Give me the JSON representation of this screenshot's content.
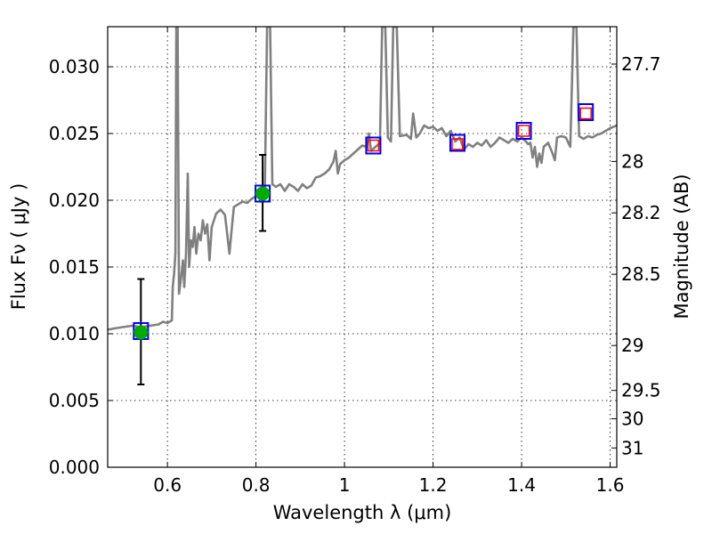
{
  "chart_data": {
    "type": "line",
    "xlabel": "Wavelength  λ (μm)",
    "ylabel": "Flux  Fν  ( μJy )",
    "y2label": "Magnitude (AB)",
    "xlim": [
      0.465,
      1.615
    ],
    "ylim": [
      0.0,
      0.033
    ],
    "x_ticks": [
      0.6,
      0.8,
      1.0,
      1.2,
      1.4,
      1.6
    ],
    "x_tick_labels": [
      "0.6",
      "0.8",
      "1",
      "1.2",
      "1.4",
      "1.6"
    ],
    "y_ticks": [
      0.0,
      0.005,
      0.01,
      0.015,
      0.02,
      0.025,
      0.03
    ],
    "y_tick_labels": [
      "0.000",
      "0.005",
      "0.010",
      "0.015",
      "0.020",
      "0.025",
      "0.030"
    ],
    "mag_ticks": [
      27.7,
      28,
      28.2,
      28.5,
      29,
      29.5,
      30,
      31
    ],
    "mag_tick_labels": [
      "27.7",
      "28",
      "28.2",
      "28.5",
      "29",
      "29.5",
      "30",
      "31"
    ],
    "grid": true,
    "series": [
      {
        "kind": "spectrum",
        "color": "#808080",
        "points": [
          [
            0.465,
            0.0103
          ],
          [
            0.48,
            0.0104
          ],
          [
            0.5,
            0.0105
          ],
          [
            0.52,
            0.0106
          ],
          [
            0.54,
            0.0105
          ],
          [
            0.56,
            0.0106
          ],
          [
            0.58,
            0.0107
          ],
          [
            0.59,
            0.0109
          ],
          [
            0.6,
            0.0108
          ],
          [
            0.61,
            0.011
          ],
          [
            0.612,
            0.0135
          ],
          [
            0.615,
            0.0145
          ],
          [
            0.618,
            0.016
          ],
          [
            0.62,
            0.033
          ],
          [
            0.623,
            0.033
          ],
          [
            0.626,
            0.013
          ],
          [
            0.63,
            0.014
          ],
          [
            0.635,
            0.0155
          ],
          [
            0.638,
            0.0135
          ],
          [
            0.642,
            0.016
          ],
          [
            0.646,
            0.022
          ],
          [
            0.649,
            0.015
          ],
          [
            0.653,
            0.017
          ],
          [
            0.657,
            0.0165
          ],
          [
            0.661,
            0.018
          ],
          [
            0.665,
            0.016
          ],
          [
            0.67,
            0.0175
          ],
          [
            0.675,
            0.017
          ],
          [
            0.68,
            0.0185
          ],
          [
            0.685,
            0.0175
          ],
          [
            0.69,
            0.0182
          ],
          [
            0.695,
            0.0155
          ],
          [
            0.7,
            0.018
          ],
          [
            0.71,
            0.019
          ],
          [
            0.72,
            0.0193
          ],
          [
            0.73,
            0.0189
          ],
          [
            0.74,
            0.016
          ],
          [
            0.745,
            0.0178
          ],
          [
            0.75,
            0.0195
          ],
          [
            0.76,
            0.0197
          ],
          [
            0.77,
            0.0199
          ],
          [
            0.78,
            0.0198
          ],
          [
            0.79,
            0.0201
          ],
          [
            0.8,
            0.0203
          ],
          [
            0.81,
            0.0204
          ],
          [
            0.815,
            0.0207
          ],
          [
            0.82,
            0.021
          ],
          [
            0.825,
            0.033
          ],
          [
            0.832,
            0.033
          ],
          [
            0.837,
            0.0212
          ],
          [
            0.845,
            0.021
          ],
          [
            0.855,
            0.0212
          ],
          [
            0.865,
            0.0207
          ],
          [
            0.875,
            0.0212
          ],
          [
            0.885,
            0.021
          ],
          [
            0.895,
            0.0207
          ],
          [
            0.905,
            0.0212
          ],
          [
            0.915,
            0.0209
          ],
          [
            0.925,
            0.0211
          ],
          [
            0.935,
            0.0217
          ],
          [
            0.945,
            0.0218
          ],
          [
            0.955,
            0.022
          ],
          [
            0.965,
            0.0223
          ],
          [
            0.975,
            0.0229
          ],
          [
            0.98,
            0.0237
          ],
          [
            0.985,
            0.022
          ],
          [
            0.99,
            0.0227
          ],
          [
            1.0,
            0.023
          ],
          [
            1.01,
            0.0232
          ],
          [
            1.02,
            0.0235
          ],
          [
            1.03,
            0.0238
          ],
          [
            1.04,
            0.0241
          ],
          [
            1.05,
            0.024
          ],
          [
            1.055,
            0.025
          ],
          [
            1.06,
            0.0237
          ],
          [
            1.07,
            0.024
          ],
          [
            1.08,
            0.0243
          ],
          [
            1.085,
            0.033
          ],
          [
            1.092,
            0.033
          ],
          [
            1.098,
            0.0247
          ],
          [
            1.105,
            0.0244
          ],
          [
            1.11,
            0.033
          ],
          [
            1.118,
            0.033
          ],
          [
            1.125,
            0.0248
          ],
          [
            1.14,
            0.0249
          ],
          [
            1.15,
            0.0246
          ],
          [
            1.155,
            0.0265
          ],
          [
            1.162,
            0.0247
          ],
          [
            1.17,
            0.025
          ],
          [
            1.18,
            0.0256
          ],
          [
            1.19,
            0.0254
          ],
          [
            1.2,
            0.0255
          ],
          [
            1.21,
            0.0252
          ],
          [
            1.22,
            0.0254
          ],
          [
            1.23,
            0.0248
          ],
          [
            1.24,
            0.0252
          ],
          [
            1.25,
            0.0244
          ],
          [
            1.26,
            0.0247
          ],
          [
            1.27,
            0.0238
          ],
          [
            1.28,
            0.0242
          ],
          [
            1.29,
            0.024
          ],
          [
            1.3,
            0.0243
          ],
          [
            1.31,
            0.0241
          ],
          [
            1.32,
            0.0245
          ],
          [
            1.33,
            0.024
          ],
          [
            1.34,
            0.0243
          ],
          [
            1.35,
            0.0247
          ],
          [
            1.36,
            0.0245
          ],
          [
            1.37,
            0.0243
          ],
          [
            1.38,
            0.0246
          ],
          [
            1.39,
            0.0244
          ],
          [
            1.4,
            0.0247
          ],
          [
            1.41,
            0.0244
          ],
          [
            1.415,
            0.0242
          ],
          [
            1.42,
            0.0243
          ],
          [
            1.425,
            0.0232
          ],
          [
            1.43,
            0.024
          ],
          [
            1.435,
            0.0225
          ],
          [
            1.44,
            0.0235
          ],
          [
            1.445,
            0.0228
          ],
          [
            1.45,
            0.024
          ],
          [
            1.46,
            0.0243
          ],
          [
            1.47,
            0.0235
          ],
          [
            1.475,
            0.023
          ],
          [
            1.48,
            0.0247
          ],
          [
            1.49,
            0.0248
          ],
          [
            1.5,
            0.0247
          ],
          [
            1.51,
            0.024
          ],
          [
            1.517,
            0.033
          ],
          [
            1.524,
            0.033
          ],
          [
            1.53,
            0.0248
          ],
          [
            1.54,
            0.0246
          ],
          [
            1.55,
            0.0248
          ],
          [
            1.56,
            0.0247
          ],
          [
            1.57,
            0.0249
          ],
          [
            1.58,
            0.025
          ],
          [
            1.59,
            0.0252
          ],
          [
            1.6,
            0.0254
          ],
          [
            1.615,
            0.0256
          ]
        ]
      },
      {
        "kind": "photometry-errorbar",
        "color": "#00aa00",
        "points": [
          {
            "x": 0.54,
            "y": 0.0101,
            "yerr_low": 0.0062,
            "yerr_high": 0.0141
          },
          {
            "x": 0.815,
            "y": 0.0205,
            "yerr_low": 0.0177,
            "yerr_high": 0.0234
          }
        ]
      },
      {
        "kind": "observed-box",
        "color": "#0000ff",
        "points": [
          {
            "x": 0.54,
            "y": 0.0102
          },
          {
            "x": 0.815,
            "y": 0.0205
          },
          {
            "x": 1.065,
            "y": 0.0241
          },
          {
            "x": 1.255,
            "y": 0.0243
          },
          {
            "x": 1.405,
            "y": 0.0252
          },
          {
            "x": 1.545,
            "y": 0.0266
          }
        ]
      },
      {
        "kind": "model-box",
        "color": "#ff0000",
        "points": [
          {
            "x": 1.065,
            "y": 0.0241
          },
          {
            "x": 1.255,
            "y": 0.0242
          },
          {
            "x": 1.405,
            "y": 0.0252
          },
          {
            "x": 1.545,
            "y": 0.0265
          }
        ]
      }
    ]
  }
}
